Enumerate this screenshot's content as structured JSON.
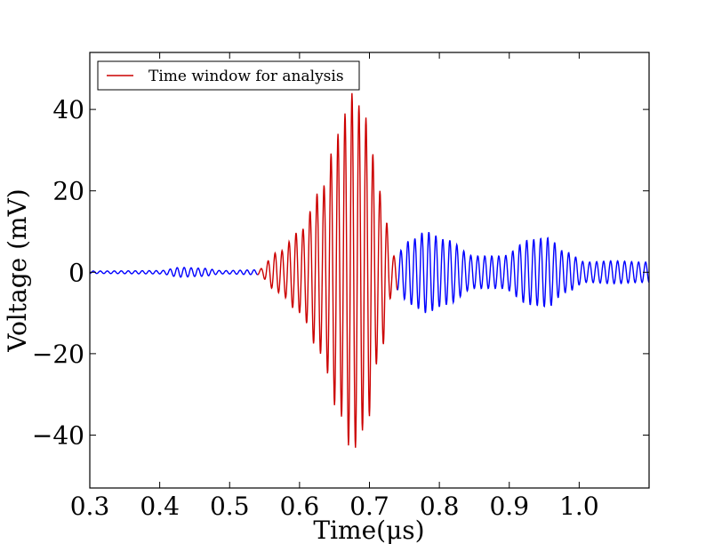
{
  "chart_data": {
    "type": "line",
    "title": "",
    "xlabel": "Time(μs)",
    "ylabel": "Voltage (mV)",
    "xlim": [
      0.3,
      1.1
    ],
    "ylim": [
      -53,
      54
    ],
    "xticks": [
      0.3,
      0.4,
      0.5,
      0.6,
      0.7,
      0.8,
      0.9,
      1.0
    ],
    "xtick_labels": [
      "0.3",
      "0.4",
      "0.5",
      "0.6",
      "0.7",
      "0.8",
      "0.9",
      "1.0"
    ],
    "yticks": [
      -40,
      -20,
      0,
      20,
      40
    ],
    "ytick_labels": [
      "−40",
      "−20",
      "0",
      "20",
      "40"
    ],
    "grid": false,
    "legend": {
      "position": "upper-left",
      "entries": [
        "Time window for analysis"
      ]
    },
    "series": [
      {
        "name": "",
        "color": "#0000ff",
        "x_range": [
          0.3,
          1.1
        ],
        "description_envelope": "oscillating signal at ~100 MHz"
      },
      {
        "name": "Time window for analysis",
        "color": "#cc0000",
        "x_range": [
          0.54,
          0.74
        ]
      }
    ],
    "envelope_peaks": [
      {
        "x": 0.3,
        "amp": 0.3
      },
      {
        "x": 0.4,
        "amp": 0.4
      },
      {
        "x": 0.43,
        "amp": 1.2
      },
      {
        "x": 0.46,
        "amp": 1.0
      },
      {
        "x": 0.49,
        "amp": 0.4
      },
      {
        "x": 0.54,
        "amp": 0.6
      },
      {
        "x": 0.57,
        "amp": 5
      },
      {
        "x": 0.6,
        "amp": 10
      },
      {
        "x": 0.63,
        "amp": 20
      },
      {
        "x": 0.655,
        "amp": 34
      },
      {
        "x": 0.675,
        "amp": 44
      },
      {
        "x": 0.695,
        "amp": 38
      },
      {
        "x": 0.715,
        "amp": 20
      },
      {
        "x": 0.735,
        "amp": 4
      },
      {
        "x": 0.76,
        "amp": 8
      },
      {
        "x": 0.78,
        "amp": 10
      },
      {
        "x": 0.81,
        "amp": 8
      },
      {
        "x": 0.85,
        "amp": 4
      },
      {
        "x": 0.89,
        "amp": 4
      },
      {
        "x": 0.93,
        "amp": 8
      },
      {
        "x": 0.955,
        "amp": 8.5
      },
      {
        "x": 0.98,
        "amp": 5
      },
      {
        "x": 1.01,
        "amp": 2.5
      },
      {
        "x": 1.05,
        "amp": 2.8
      },
      {
        "x": 1.09,
        "amp": 2.5
      },
      {
        "x": 1.1,
        "amp": 2.5
      }
    ],
    "frequency_per_us": 100,
    "red_window": [
      0.54,
      0.74
    ]
  }
}
